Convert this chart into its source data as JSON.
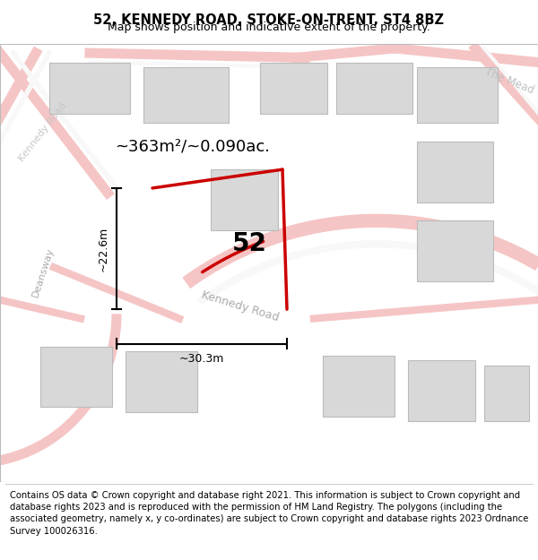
{
  "title": "52, KENNEDY ROAD, STOKE-ON-TRENT, ST4 8BZ",
  "subtitle": "Map shows position and indicative extent of the property.",
  "footer": "Contains OS data © Crown copyright and database right 2021. This information is subject to Crown copyright and database rights 2023 and is reproduced with the permission of HM Land Registry. The polygons (including the associated geometry, namely x, y co-ordinates) are subject to Crown copyright and database rights 2023 Ordnance Survey 100026316.",
  "area_label": "~363m²/~0.090ac.",
  "number_label": "52",
  "dim_width": "~30.3m",
  "dim_height": "~22.6m",
  "road_label_kennedy_bottom": "Kennedy Road",
  "road_label_kennedy_top": "Kennedy Road",
  "road_label_deansway": "Deansway",
  "road_label_mead": "The Mead",
  "map_bg": "#f0f0f0",
  "road_fill": "#f5c5c5",
  "road_stroke": "#e8b0b0",
  "building_color": "#d8d8d8",
  "building_edge": "#bbbbbb",
  "highlight_color": "#cc0000",
  "title_fontsize": 10.5,
  "subtitle_fontsize": 9,
  "footer_fontsize": 7.2,
  "area_fontsize": 13,
  "number_fontsize": 20,
  "dim_fontsize": 9,
  "road_label_fontsize": 9,
  "road_label_color": "#aaaaaa"
}
